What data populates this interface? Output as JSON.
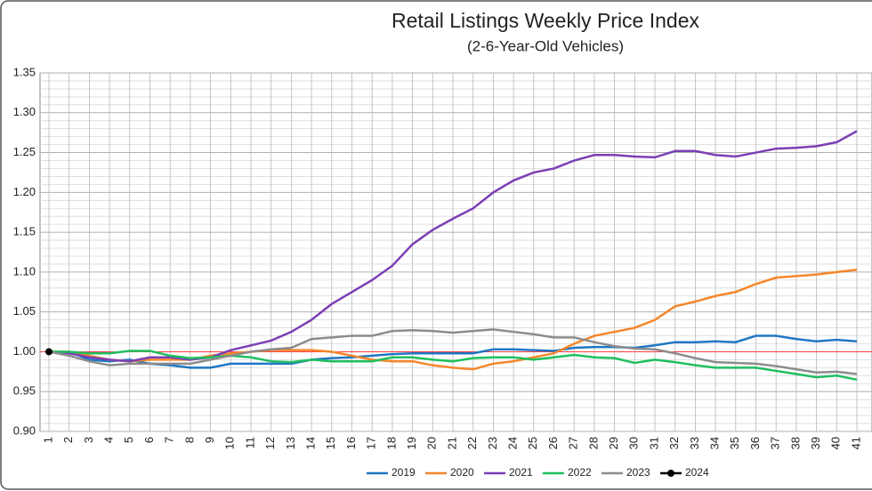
{
  "chart_data": {
    "type": "line",
    "title": "Retail Listings Weekly Price Index",
    "subtitle": "(2-6-Year-Old Vehicles)",
    "categories": [
      "1",
      "2",
      "3",
      "4",
      "5",
      "6",
      "7",
      "8",
      "9",
      "10",
      "11",
      "12",
      "13",
      "14",
      "15",
      "16",
      "17",
      "18",
      "19",
      "20",
      "21",
      "22",
      "23",
      "24",
      "25",
      "26",
      "27",
      "28",
      "29",
      "30",
      "31",
      "32",
      "33",
      "34",
      "35",
      "36",
      "37",
      "38",
      "39",
      "40",
      "41"
    ],
    "ylim": [
      0.9,
      1.35
    ],
    "yticks": [
      {
        "value": 0.9,
        "label": "0.90"
      },
      0.95,
      {
        "value": 1,
        "label": "1.00"
      },
      1.05,
      {
        "value": 1.1,
        "label": "1.10"
      },
      1.15,
      {
        "value": 1.2,
        "label": "1.20"
      },
      1.25,
      {
        "value": 1.3,
        "label": "1.30"
      },
      1.35
    ],
    "grid": true,
    "reference_line": {
      "value": 1,
      "color": "#ff4040"
    },
    "legend": "bottom",
    "series": [
      {
        "name": "2019",
        "color": "#1f77c4",
        "values": [
          1.0,
          1.0,
          0.99,
          0.988,
          0.99,
          0.985,
          0.983,
          0.98,
          0.98,
          0.985,
          0.985,
          0.985,
          0.985,
          0.99,
          0.992,
          0.993,
          0.995,
          0.997,
          0.998,
          0.998,
          0.998,
          0.998,
          1.003,
          1.003,
          1.002,
          1.001,
          1.005,
          1.006,
          1.006,
          1.005,
          1.008,
          1.012,
          1.012,
          1.013,
          1.012,
          1.02,
          1.02,
          1.016,
          1.013,
          1.015,
          1.013
        ]
      },
      {
        "name": "2020",
        "color": "#f5862a",
        "values": [
          1.0,
          1.0,
          0.995,
          0.99,
          0.988,
          0.99,
          0.99,
          0.99,
          0.995,
          0.998,
          1.0,
          1.002,
          1.002,
          1.002,
          1.0,
          0.995,
          0.99,
          0.988,
          0.988,
          0.983,
          0.98,
          0.978,
          0.985,
          0.988,
          0.993,
          0.998,
          1.01,
          1.02,
          1.025,
          1.03,
          1.04,
          1.057,
          1.063,
          1.07,
          1.075,
          1.085,
          1.093,
          1.095,
          1.097,
          1.1,
          1.103
        ]
      },
      {
        "name": "2021",
        "color": "#7b3fb5",
        "values": [
          1.0,
          0.998,
          0.993,
          0.99,
          0.988,
          0.993,
          0.993,
          0.99,
          0.993,
          1.002,
          1.008,
          1.014,
          1.025,
          1.04,
          1.06,
          1.075,
          1.09,
          1.108,
          1.135,
          1.153,
          1.167,
          1.18,
          1.2,
          1.215,
          1.225,
          1.23,
          1.24,
          1.247,
          1.247,
          1.245,
          1.244,
          1.252,
          1.252,
          1.247,
          1.245,
          1.25,
          1.255,
          1.256,
          1.258,
          1.263,
          1.277
        ]
      },
      {
        "name": "2022",
        "color": "#1fbf5f",
        "values": [
          1.0,
          1.0,
          0.998,
          0.998,
          1.001,
          1.001,
          0.995,
          0.992,
          0.993,
          0.995,
          0.993,
          0.988,
          0.987,
          0.99,
          0.988,
          0.988,
          0.988,
          0.993,
          0.993,
          0.99,
          0.988,
          0.992,
          0.993,
          0.993,
          0.99,
          0.993,
          0.996,
          0.993,
          0.992,
          0.986,
          0.99,
          0.987,
          0.983,
          0.98,
          0.98,
          0.98,
          0.976,
          0.972,
          0.968,
          0.97,
          0.965
        ]
      },
      {
        "name": "2023",
        "color": "#8c8c8c",
        "values": [
          1.0,
          0.995,
          0.988,
          0.983,
          0.985,
          0.985,
          0.985,
          0.985,
          0.99,
          0.995,
          1.0,
          1.003,
          1.005,
          1.016,
          1.018,
          1.02,
          1.02,
          1.026,
          1.027,
          1.026,
          1.024,
          1.026,
          1.028,
          1.025,
          1.022,
          1.018,
          1.018,
          1.012,
          1.007,
          1.004,
          1.003,
          0.998,
          0.992,
          0.987,
          0.986,
          0.985,
          0.982,
          0.978,
          0.974,
          0.975,
          0.972
        ]
      },
      {
        "name": "2024",
        "color": "#000000",
        "marker": true,
        "values": [
          1.0,
          null,
          null,
          null,
          null,
          null,
          null,
          null,
          null,
          null,
          null,
          null,
          null,
          null,
          null,
          null,
          null,
          null,
          null,
          null,
          null,
          null,
          null,
          null,
          null,
          null,
          null,
          null,
          null,
          null,
          null,
          null,
          null,
          null,
          null,
          null,
          null,
          null,
          null,
          null,
          null
        ]
      }
    ]
  }
}
